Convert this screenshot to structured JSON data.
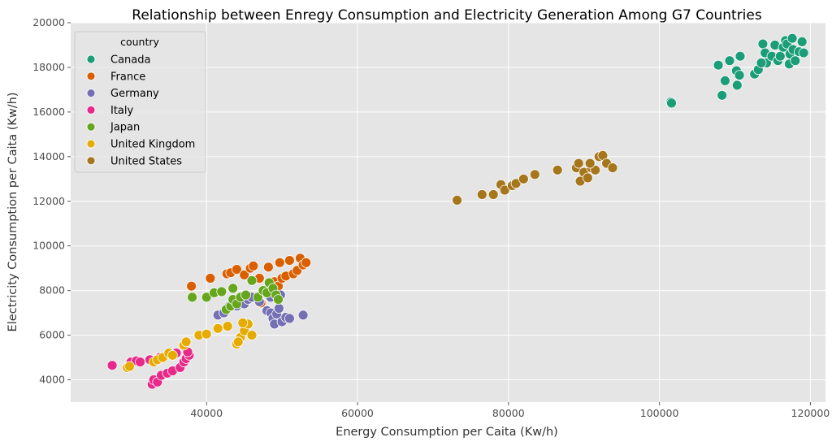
{
  "chart_data": {
    "type": "scatter",
    "title": "Relationship between Enregy Consumption and Electricity Generation Among G7 Countries",
    "xlabel": "Energy Consumption per Caita (Kw/h)",
    "ylabel": "Electricity Consumption per Caita (Kw/h)",
    "xlim": [
      22000,
      122000
    ],
    "ylim": [
      3000,
      20000
    ],
    "xticks": [
      40000,
      60000,
      80000,
      100000,
      120000
    ],
    "yticks": [
      4000,
      6000,
      8000,
      10000,
      12000,
      14000,
      16000,
      18000,
      20000
    ],
    "xtick_labels": [
      "40000",
      "60000",
      "80000",
      "100000",
      "120000"
    ],
    "ytick_labels": [
      "4000",
      "6000",
      "8000",
      "10000",
      "12000",
      "14000",
      "16000",
      "18000",
      "20000"
    ],
    "grid": true,
    "background": "#e5e5e5",
    "legend": {
      "title": "country",
      "placement": "top-left"
    },
    "series": [
      {
        "name": "Canada",
        "color": "#1b9e77",
        "points": [
          [
            101500,
            16450
          ],
          [
            101600,
            16400
          ],
          [
            107800,
            18100
          ],
          [
            108300,
            16750
          ],
          [
            108700,
            17400
          ],
          [
            109300,
            18300
          ],
          [
            110200,
            17850
          ],
          [
            110300,
            17200
          ],
          [
            110600,
            17650
          ],
          [
            110700,
            18500
          ],
          [
            112600,
            17700
          ],
          [
            113100,
            17900
          ],
          [
            113700,
            19050
          ],
          [
            114000,
            18650
          ],
          [
            114200,
            18200
          ],
          [
            114900,
            18500
          ],
          [
            115300,
            19000
          ],
          [
            115700,
            18300
          ],
          [
            116000,
            18500
          ],
          [
            116400,
            18900
          ],
          [
            116700,
            19200
          ],
          [
            116900,
            19050
          ],
          [
            117300,
            18600
          ],
          [
            117200,
            18150
          ],
          [
            117600,
            19300
          ],
          [
            117700,
            18800
          ],
          [
            118000,
            18300
          ],
          [
            118500,
            18700
          ],
          [
            118900,
            19150
          ],
          [
            119100,
            18650
          ],
          [
            113500,
            18200
          ]
        ]
      },
      {
        "name": "France",
        "color": "#d95f02",
        "points": [
          [
            38000,
            8200
          ],
          [
            40500,
            8550
          ],
          [
            42700,
            8750
          ],
          [
            43200,
            8800
          ],
          [
            44000,
            8950
          ],
          [
            45000,
            8700
          ],
          [
            45800,
            9000
          ],
          [
            46200,
            9100
          ],
          [
            47000,
            8550
          ],
          [
            48200,
            9050
          ],
          [
            49000,
            8400
          ],
          [
            49500,
            8200
          ],
          [
            50000,
            8550
          ],
          [
            50500,
            8650
          ],
          [
            51000,
            9350
          ],
          [
            51500,
            8750
          ],
          [
            52000,
            8900
          ],
          [
            52400,
            9450
          ],
          [
            52800,
            9150
          ],
          [
            53200,
            9250
          ],
          [
            49700,
            9250
          ],
          [
            47200,
            7450
          ]
        ]
      },
      {
        "name": "Germany",
        "color": "#7570b3",
        "points": [
          [
            41500,
            6900
          ],
          [
            42300,
            7000
          ],
          [
            43000,
            7300
          ],
          [
            44000,
            7300
          ],
          [
            45000,
            7400
          ],
          [
            45500,
            7600
          ],
          [
            46000,
            7700
          ],
          [
            47000,
            7500
          ],
          [
            48000,
            7100
          ],
          [
            48500,
            7000
          ],
          [
            48800,
            6750
          ],
          [
            49000,
            6500
          ],
          [
            49300,
            6950
          ],
          [
            49600,
            7200
          ],
          [
            50000,
            6600
          ],
          [
            50500,
            6800
          ],
          [
            51000,
            6750
          ],
          [
            52800,
            6900
          ],
          [
            48500,
            7700
          ],
          [
            49800,
            7800
          ]
        ]
      },
      {
        "name": "Italy",
        "color": "#e7298a",
        "points": [
          [
            27500,
            4650
          ],
          [
            30000,
            4800
          ],
          [
            30700,
            4850
          ],
          [
            31200,
            4800
          ],
          [
            32500,
            4900
          ],
          [
            32800,
            3800
          ],
          [
            33000,
            4000
          ],
          [
            33500,
            3900
          ],
          [
            34000,
            4200
          ],
          [
            34800,
            4300
          ],
          [
            35500,
            4400
          ],
          [
            36000,
            5200
          ],
          [
            36500,
            4550
          ],
          [
            37000,
            4800
          ],
          [
            37300,
            4950
          ],
          [
            37700,
            5100
          ],
          [
            37500,
            5250
          ],
          [
            33800,
            5000
          ]
        ]
      },
      {
        "name": "Japan",
        "color": "#66a61e",
        "points": [
          [
            38100,
            7700
          ],
          [
            40000,
            7700
          ],
          [
            41000,
            7900
          ],
          [
            42000,
            7950
          ],
          [
            42600,
            7150
          ],
          [
            43200,
            7300
          ],
          [
            43500,
            7600
          ],
          [
            44000,
            7400
          ],
          [
            44500,
            7700
          ],
          [
            45200,
            7800
          ],
          [
            46000,
            8450
          ],
          [
            46800,
            7700
          ],
          [
            47500,
            8000
          ],
          [
            48000,
            7900
          ],
          [
            48300,
            8350
          ],
          [
            48800,
            8100
          ],
          [
            49200,
            7800
          ],
          [
            49500,
            7600
          ],
          [
            43500,
            8100
          ]
        ]
      },
      {
        "name": "United Kingdom",
        "color": "#e6ab02",
        "points": [
          [
            29500,
            4550
          ],
          [
            29800,
            4600
          ],
          [
            33000,
            4800
          ],
          [
            33500,
            4900
          ],
          [
            34200,
            5000
          ],
          [
            35000,
            5200
          ],
          [
            35500,
            5100
          ],
          [
            37000,
            5550
          ],
          [
            37300,
            5700
          ],
          [
            39000,
            6000
          ],
          [
            40000,
            6050
          ],
          [
            41500,
            6300
          ],
          [
            42800,
            6400
          ],
          [
            44000,
            5600
          ],
          [
            44500,
            5900
          ],
          [
            45000,
            6200
          ],
          [
            45500,
            6500
          ],
          [
            46000,
            6000
          ],
          [
            44800,
            6550
          ],
          [
            44200,
            5700
          ]
        ]
      },
      {
        "name": "United States",
        "color": "#a6761d",
        "points": [
          [
            73200,
            12050
          ],
          [
            76500,
            12300
          ],
          [
            78000,
            12300
          ],
          [
            79000,
            12750
          ],
          [
            79500,
            12500
          ],
          [
            80500,
            12700
          ],
          [
            81000,
            12800
          ],
          [
            82000,
            13000
          ],
          [
            83500,
            13200
          ],
          [
            86500,
            13400
          ],
          [
            89000,
            13500
          ],
          [
            89500,
            12900
          ],
          [
            90000,
            13300
          ],
          [
            90500,
            13050
          ],
          [
            91000,
            13500
          ],
          [
            91500,
            13400
          ],
          [
            92000,
            14000
          ],
          [
            92500,
            14050
          ],
          [
            93000,
            13700
          ],
          [
            93800,
            13500
          ],
          [
            89300,
            13700
          ],
          [
            90800,
            13700
          ]
        ]
      }
    ]
  }
}
